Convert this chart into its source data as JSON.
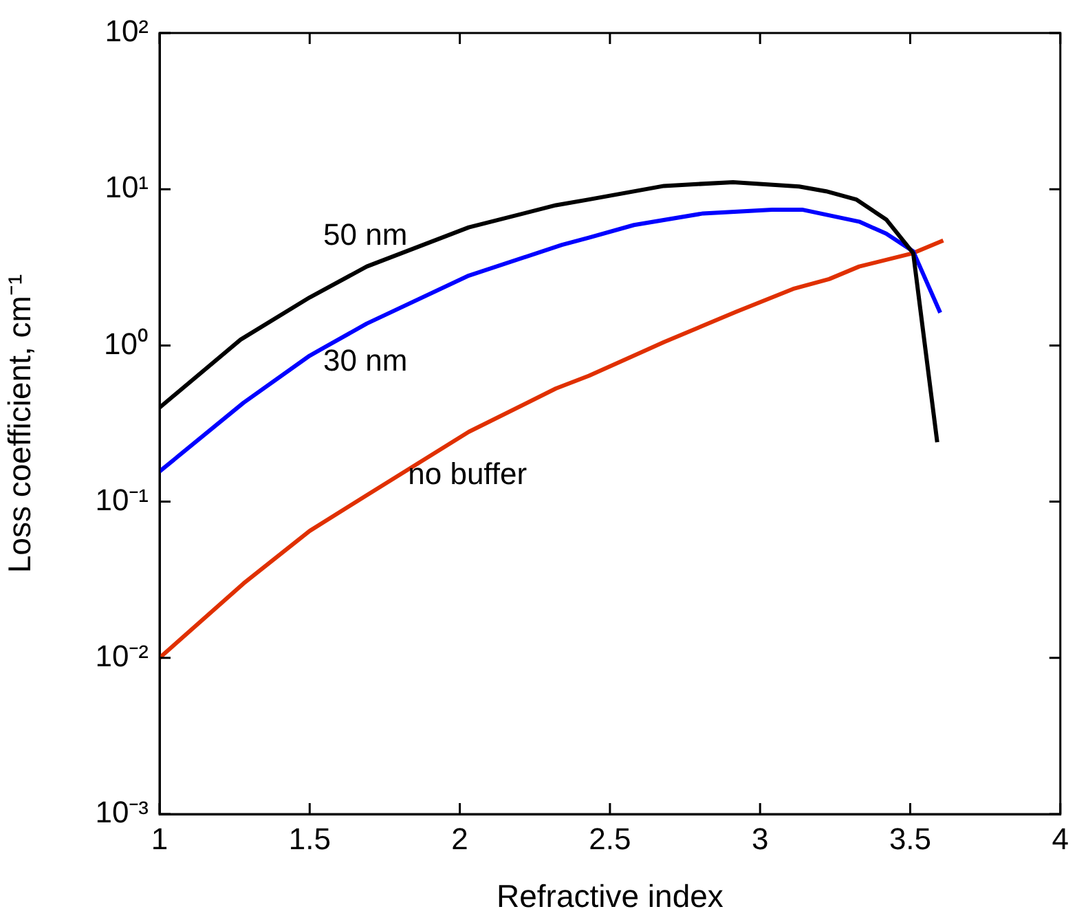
{
  "chart_data": {
    "type": "line",
    "xlabel": "Refractive index",
    "ylabel": "Loss coefficient, cm⁻¹",
    "log": "y",
    "grid": false,
    "legend": false,
    "marker": "none",
    "line_style": "solid",
    "xlim": [
      1,
      4
    ],
    "xticks": [
      1,
      1.5,
      2,
      2.5,
      3,
      3.5,
      4
    ],
    "ylim": [
      0.001,
      100
    ],
    "yticks": [
      {
        "value": 0.001,
        "label": "10⁻³"
      },
      {
        "value": 0.01,
        "label": "10⁻²"
      },
      {
        "value": 0.1,
        "label": "10⁻¹"
      },
      {
        "value": 1,
        "label": "10⁰"
      },
      {
        "value": 10,
        "label": "10¹"
      },
      {
        "value": 100,
        "label": "10²"
      }
    ],
    "series": [
      {
        "name": "50 nm",
        "color": "#000000",
        "x": [
          1.0,
          1.27,
          1.5,
          1.69,
          2.03,
          2.32,
          2.43,
          2.68,
          2.91,
          3.13,
          3.22,
          3.32,
          3.42,
          3.51,
          3.59
        ],
        "values": [
          0.4,
          1.09,
          2.03,
          3.2,
          5.7,
          7.9,
          8.6,
          10.5,
          11.1,
          10.4,
          9.7,
          8.6,
          6.4,
          3.9,
          0.24
        ]
      },
      {
        "name": "30 nm",
        "color": "#0000ff",
        "x": [
          1.0,
          1.28,
          1.5,
          1.69,
          2.03,
          2.34,
          2.43,
          2.58,
          2.81,
          3.04,
          3.14,
          3.33,
          3.42,
          3.51,
          3.6
        ],
        "values": [
          0.156,
          0.43,
          0.86,
          1.38,
          2.8,
          4.4,
          4.9,
          5.9,
          7.0,
          7.4,
          7.4,
          6.2,
          5.2,
          4.0,
          1.62
        ]
      },
      {
        "name": "no buffer",
        "color": "#e03000",
        "x": [
          1.0,
          1.28,
          1.5,
          1.69,
          2.03,
          2.32,
          2.43,
          2.68,
          2.92,
          3.11,
          3.23,
          3.33,
          3.51,
          3.61
        ],
        "values": [
          0.01,
          0.03,
          0.065,
          0.11,
          0.28,
          0.53,
          0.64,
          1.05,
          1.64,
          2.3,
          2.66,
          3.2,
          3.9,
          4.7
        ]
      }
    ]
  }
}
